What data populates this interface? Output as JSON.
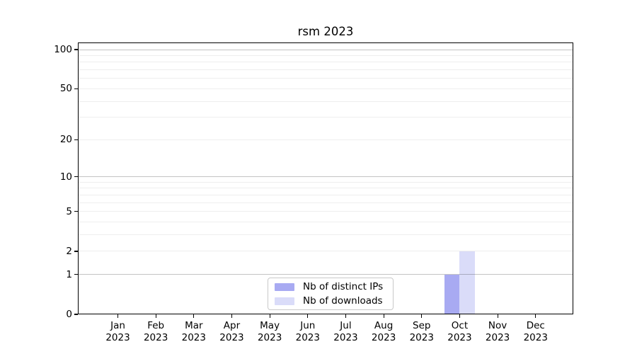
{
  "chart_data": {
    "type": "bar",
    "title": "rsm 2023",
    "categories": [
      "Jan 2023",
      "Feb 2023",
      "Mar 2023",
      "Apr 2023",
      "May 2023",
      "Jun 2023",
      "Jul 2023",
      "Aug 2023",
      "Sep 2023",
      "Oct 2023",
      "Nov 2023",
      "Dec 2023"
    ],
    "x_tick_labels": [
      {
        "line1": "Jan",
        "line2": "2023"
      },
      {
        "line1": "Feb",
        "line2": "2023"
      },
      {
        "line1": "Mar",
        "line2": "2023"
      },
      {
        "line1": "Apr",
        "line2": "2023"
      },
      {
        "line1": "May",
        "line2": "2023"
      },
      {
        "line1": "Jun",
        "line2": "2023"
      },
      {
        "line1": "Jul",
        "line2": "2023"
      },
      {
        "line1": "Aug",
        "line2": "2023"
      },
      {
        "line1": "Sep",
        "line2": "2023"
      },
      {
        "line1": "Oct",
        "line2": "2023"
      },
      {
        "line1": "Nov",
        "line2": "2023"
      },
      {
        "line1": "Dec",
        "line2": "2023"
      }
    ],
    "series": [
      {
        "name": "Nb of distinct IPs",
        "color": "#a8aaf2",
        "values": [
          0,
          0,
          0,
          0,
          0,
          0,
          0,
          0,
          0,
          1,
          0,
          0
        ]
      },
      {
        "name": "Nb of downloads",
        "color": "#dadcf9",
        "values": [
          0,
          0,
          0,
          0,
          0,
          0,
          0,
          0,
          0,
          2,
          0,
          0
        ]
      }
    ],
    "xlabel": "",
    "ylabel": "",
    "yscale": "log1p",
    "ylim": [
      0,
      113
    ],
    "y_ticks": [
      {
        "label": "0",
        "value": 0
      },
      {
        "label": "1",
        "value": 1
      },
      {
        "label": "2",
        "value": 2
      },
      {
        "label": "5",
        "value": 5
      },
      {
        "label": "10",
        "value": 10
      },
      {
        "label": "20",
        "value": 20
      },
      {
        "label": "50",
        "value": 50
      },
      {
        "label": "100",
        "value": 100
      }
    ],
    "grid": {
      "enabled": true,
      "major_values": [
        1,
        10,
        100
      ],
      "minor_values": [
        2,
        3,
        4,
        5,
        6,
        7,
        8,
        9,
        20,
        30,
        40,
        50,
        60,
        70,
        80,
        90
      ],
      "major_color": "#c4c4c4",
      "minor_color": "#eeeeee"
    },
    "legend": {
      "position": "lower center",
      "entries": [
        "Nb of distinct IPs",
        "Nb of downloads"
      ]
    },
    "colors": {
      "axis": "#000000",
      "text": "#000000",
      "background": "#ffffff"
    }
  }
}
